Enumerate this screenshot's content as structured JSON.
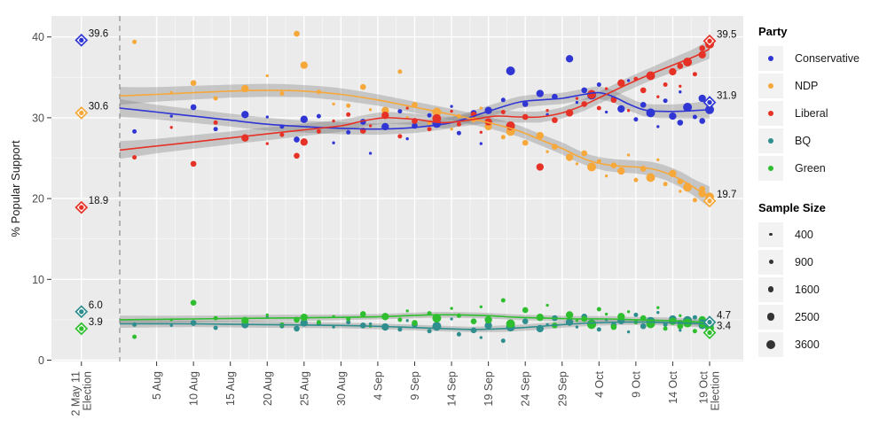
{
  "legend": {
    "party": {
      "title": "Party",
      "items": [
        {
          "id": "conservative",
          "label": "Conservative",
          "color": "#3036d4"
        },
        {
          "id": "ndp",
          "label": "NDP",
          "color": "#f6a83a"
        },
        {
          "id": "liberal",
          "label": "Liberal",
          "color": "#e63226"
        },
        {
          "id": "bq",
          "label": "BQ",
          "color": "#2f8e8e"
        },
        {
          "id": "green",
          "label": "Green",
          "color": "#2fbe2f"
        }
      ]
    },
    "sample_size": {
      "title": "Sample Size",
      "items": [
        {
          "label": "400",
          "n": 400
        },
        {
          "label": "900",
          "n": 900
        },
        {
          "label": "1600",
          "n": 1600
        },
        {
          "label": "2500",
          "n": 2500
        },
        {
          "label": "3600",
          "n": 3600
        }
      ]
    }
  },
  "chart_data": {
    "type": "scatter",
    "title": "",
    "xlabel": "",
    "ylabel": "% Popular Support",
    "ylim": [
      0,
      42
    ],
    "grid": true,
    "legend_position": "right",
    "style": {
      "panel_fill": "#ebebeb",
      "grid_major": "#ffffff",
      "grid_minor": "#f6f6f6",
      "band_fill": "#777777",
      "band_opacity": 0.32,
      "dashed_line_color": "#999999",
      "axis_text_color": "#4d4d4d",
      "label_text_color": "#111111"
    },
    "y_ticks": [
      0,
      10,
      20,
      30,
      40
    ],
    "y_minor_ticks": [
      5,
      15,
      25,
      35
    ],
    "x_ticks": [
      {
        "day": -5.2,
        "lines": [
          "2 May 11",
          "Election"
        ]
      },
      {
        "day": 5,
        "lines": [
          "5 Aug"
        ]
      },
      {
        "day": 10,
        "lines": [
          "10 Aug"
        ]
      },
      {
        "day": 15,
        "lines": [
          "15 Aug"
        ]
      },
      {
        "day": 20,
        "lines": [
          "20 Aug"
        ]
      },
      {
        "day": 25,
        "lines": [
          "25 Aug"
        ]
      },
      {
        "day": 30,
        "lines": [
          "30 Aug"
        ]
      },
      {
        "day": 35,
        "lines": [
          "4 Sep"
        ]
      },
      {
        "day": 40,
        "lines": [
          "9 Sep"
        ]
      },
      {
        "day": 45,
        "lines": [
          "14 Sep"
        ]
      },
      {
        "day": 50,
        "lines": [
          "19 Sep"
        ]
      },
      {
        "day": 55,
        "lines": [
          "24 Sep"
        ]
      },
      {
        "day": 60,
        "lines": [
          "29 Sep"
        ]
      },
      {
        "day": 65,
        "lines": [
          "4 Oct"
        ]
      },
      {
        "day": 70,
        "lines": [
          "9 Oct"
        ]
      },
      {
        "day": 75,
        "lines": [
          "14 Oct"
        ]
      },
      {
        "day": 80,
        "lines": [
          "19 Oct",
          "Election"
        ]
      }
    ],
    "campaign_start_day": 0,
    "elections": [
      {
        "name": "2 May 11 Election",
        "day": -5.2,
        "results": {
          "conservative": 39.6,
          "ndp": 30.6,
          "liberal": 18.9,
          "bq": 6.0,
          "green": 3.9
        }
      },
      {
        "name": "19 Oct Election",
        "day": 80,
        "results": {
          "liberal": 39.5,
          "conservative": 31.9,
          "ndp": 19.7,
          "bq": 4.7,
          "green": 3.4
        }
      }
    ],
    "trends": {
      "conservative": [
        [
          0,
          31.2,
          1.1
        ],
        [
          5,
          30.7,
          0.9
        ],
        [
          10,
          30.2,
          0.85
        ],
        [
          15,
          29.7,
          0.8
        ],
        [
          20,
          29.2,
          0.8
        ],
        [
          25,
          28.9,
          0.75
        ],
        [
          30,
          28.7,
          0.75
        ],
        [
          35,
          28.6,
          0.7
        ],
        [
          40,
          28.8,
          0.7
        ],
        [
          45,
          29.4,
          0.7
        ],
        [
          50,
          30.8,
          0.7
        ],
        [
          54,
          31.9,
          0.7
        ],
        [
          57,
          32.2,
          0.7
        ],
        [
          60,
          32.4,
          0.7
        ],
        [
          63,
          32.9,
          0.7
        ],
        [
          65,
          33.1,
          0.75
        ],
        [
          67,
          32.6,
          0.75
        ],
        [
          69,
          31.7,
          0.8
        ],
        [
          71,
          31.0,
          0.8
        ],
        [
          73,
          30.8,
          0.85
        ],
        [
          76,
          30.8,
          0.9
        ],
        [
          80,
          31.0,
          1.1
        ]
      ],
      "ndp": [
        [
          0,
          32.7,
          1.1
        ],
        [
          5,
          32.9,
          0.9
        ],
        [
          10,
          33.1,
          0.85
        ],
        [
          15,
          33.3,
          0.8
        ],
        [
          20,
          33.4,
          0.8
        ],
        [
          25,
          33.3,
          0.75
        ],
        [
          30,
          32.9,
          0.75
        ],
        [
          35,
          32.2,
          0.7
        ],
        [
          40,
          31.3,
          0.7
        ],
        [
          45,
          30.4,
          0.7
        ],
        [
          50,
          29.4,
          0.7
        ],
        [
          54,
          28.4,
          0.7
        ],
        [
          57,
          27.3,
          0.7
        ],
        [
          60,
          26.2,
          0.75
        ],
        [
          62,
          25.3,
          0.75
        ],
        [
          64,
          24.6,
          0.75
        ],
        [
          66,
          24.2,
          0.8
        ],
        [
          68,
          24.0,
          0.8
        ],
        [
          70,
          23.9,
          0.8
        ],
        [
          72,
          23.7,
          0.85
        ],
        [
          74,
          23.2,
          0.9
        ],
        [
          76,
          22.4,
          0.95
        ],
        [
          78,
          21.3,
          1.05
        ],
        [
          80,
          20.2,
          1.3
        ]
      ],
      "liberal": [
        [
          0,
          26.0,
          1.1
        ],
        [
          5,
          26.5,
          0.9
        ],
        [
          10,
          27.0,
          0.85
        ],
        [
          15,
          27.5,
          0.8
        ],
        [
          20,
          28.0,
          0.8
        ],
        [
          25,
          28.5,
          0.75
        ],
        [
          30,
          29.0,
          0.75
        ],
        [
          33,
          29.6,
          0.7
        ],
        [
          36,
          30.0,
          0.7
        ],
        [
          40,
          29.8,
          0.7
        ],
        [
          44,
          29.4,
          0.7
        ],
        [
          48,
          29.8,
          0.7
        ],
        [
          51,
          30.2,
          0.7
        ],
        [
          54,
          30.1,
          0.7
        ],
        [
          57,
          30.1,
          0.7
        ],
        [
          60,
          30.6,
          0.7
        ],
        [
          63,
          31.6,
          0.75
        ],
        [
          66,
          32.9,
          0.75
        ],
        [
          69,
          34.2,
          0.8
        ],
        [
          72,
          35.4,
          0.8
        ],
        [
          75,
          36.5,
          0.9
        ],
        [
          78,
          37.6,
          1.0
        ],
        [
          80,
          38.5,
          1.2
        ]
      ],
      "bq": [
        [
          0,
          4.5,
          0.5
        ],
        [
          10,
          4.5,
          0.4
        ],
        [
          20,
          4.4,
          0.4
        ],
        [
          30,
          4.3,
          0.35
        ],
        [
          38,
          4.1,
          0.35
        ],
        [
          44,
          3.9,
          0.35
        ],
        [
          48,
          3.8,
          0.35
        ],
        [
          52,
          3.9,
          0.4
        ],
        [
          56,
          4.1,
          0.4
        ],
        [
          60,
          4.4,
          0.4
        ],
        [
          64,
          4.6,
          0.35
        ],
        [
          68,
          4.7,
          0.35
        ],
        [
          72,
          4.7,
          0.35
        ],
        [
          76,
          4.6,
          0.4
        ],
        [
          80,
          4.5,
          0.5
        ]
      ],
      "green": [
        [
          0,
          5.0,
          0.5
        ],
        [
          10,
          5.1,
          0.4
        ],
        [
          20,
          5.2,
          0.4
        ],
        [
          30,
          5.3,
          0.35
        ],
        [
          36,
          5.4,
          0.35
        ],
        [
          42,
          5.6,
          0.35
        ],
        [
          46,
          5.6,
          0.35
        ],
        [
          50,
          5.5,
          0.35
        ],
        [
          54,
          5.3,
          0.35
        ],
        [
          58,
          5.2,
          0.35
        ],
        [
          62,
          5.1,
          0.35
        ],
        [
          66,
          5.1,
          0.35
        ],
        [
          70,
          5.0,
          0.35
        ],
        [
          74,
          4.9,
          0.4
        ],
        [
          77,
          4.8,
          0.4
        ],
        [
          80,
          4.6,
          0.5
        ]
      ]
    },
    "polls_columns": [
      "day",
      "sample_size",
      "conservative",
      "ndp",
      "liberal",
      "bq",
      "green"
    ],
    "polls": [
      [
        2,
        900,
        28.3,
        39.4,
        25.1,
        4.4,
        2.9
      ],
      [
        7,
        400,
        30.2,
        33.1,
        28.8,
        4.3,
        5.0
      ],
      [
        10,
        1600,
        31.3,
        34.3,
        24.3,
        4.6,
        7.1
      ],
      [
        13,
        900,
        28.6,
        32.4,
        29.4,
        4.0,
        5.2
      ],
      [
        17,
        2500,
        30.4,
        33.6,
        27.5,
        4.4,
        4.9
      ],
      [
        20,
        400,
        30.1,
        35.2,
        26.8,
        5.3,
        5.6
      ],
      [
        22,
        900,
        28.9,
        33.0,
        27.9,
        4.2,
        4.4
      ],
      [
        24,
        1600,
        27.3,
        40.4,
        25.3,
        3.9,
        5.0
      ],
      [
        25,
        2500,
        29.8,
        36.5,
        27.0,
        4.6,
        5.3
      ],
      [
        27,
        900,
        30.2,
        33.2,
        28.3,
        4.5,
        4.7
      ],
      [
        29,
        400,
        26.9,
        31.7,
        29.6,
        4.1,
        5.4
      ],
      [
        31,
        900,
        28.2,
        31.5,
        30.4,
        4.7,
        5.1
      ],
      [
        33,
        1600,
        29.5,
        33.8,
        28.4,
        4.3,
        5.7
      ],
      [
        34,
        400,
        25.6,
        31.0,
        29.0,
        4.5,
        4.2
      ],
      [
        36,
        2500,
        28.9,
        30.9,
        30.3,
        4.1,
        5.4
      ],
      [
        38,
        900,
        30.8,
        35.7,
        27.7,
        3.8,
        5.0
      ],
      [
        39,
        400,
        27.4,
        30.0,
        31.2,
        4.9,
        6.1
      ],
      [
        40,
        1600,
        29.0,
        31.6,
        29.6,
        4.4,
        4.6
      ],
      [
        42,
        900,
        30.3,
        29.4,
        28.6,
        3.6,
        5.8
      ],
      [
        43,
        3600,
        29.3,
        30.7,
        29.9,
        4.2,
        5.2
      ],
      [
        45,
        400,
        31.4,
        28.6,
        30.8,
        5.1,
        6.4
      ],
      [
        46,
        900,
        28.1,
        30.2,
        29.2,
        3.2,
        5.5
      ],
      [
        48,
        1600,
        30.6,
        29.8,
        30.4,
        3.7,
        4.8
      ],
      [
        49,
        400,
        26.8,
        31.2,
        28.2,
        2.8,
        6.6
      ],
      [
        50,
        2500,
        30.9,
        28.9,
        29.5,
        4.3,
        5.0
      ],
      [
        52,
        900,
        32.2,
        27.6,
        30.7,
        2.4,
        7.4
      ],
      [
        53,
        3600,
        35.8,
        28.3,
        29.0,
        4.1,
        4.5
      ],
      [
        55,
        1600,
        31.7,
        26.9,
        30.1,
        4.8,
        6.2
      ],
      [
        57,
        2500,
        33.0,
        27.8,
        23.9,
        3.9,
        5.3
      ],
      [
        58,
        400,
        30.4,
        25.8,
        30.9,
        4.4,
        6.8
      ],
      [
        59,
        1600,
        32.6,
        26.4,
        29.7,
        5.2,
        4.3
      ],
      [
        61,
        2500,
        37.3,
        25.1,
        30.6,
        4.7,
        5.6
      ],
      [
        62,
        400,
        31.9,
        24.3,
        32.4,
        4.1,
        4.9
      ],
      [
        63,
        1600,
        33.4,
        25.6,
        31.7,
        5.4,
        5.1
      ],
      [
        64,
        3600,
        32.8,
        23.9,
        32.9,
        4.5,
        4.4
      ],
      [
        65,
        900,
        34.1,
        24.6,
        31.2,
        3.8,
        6.3
      ],
      [
        66,
        400,
        30.7,
        22.8,
        33.6,
        5.0,
        5.7
      ],
      [
        67,
        1600,
        32.3,
        24.1,
        32.2,
        4.3,
        4.1
      ],
      [
        68,
        2500,
        31.1,
        23.4,
        34.3,
        4.9,
        5.4
      ],
      [
        69,
        400,
        34.6,
        25.4,
        30.9,
        3.5,
        6.0
      ],
      [
        70,
        900,
        29.8,
        22.3,
        34.8,
        5.6,
        4.7
      ],
      [
        71,
        1600,
        31.6,
        23.7,
        33.4,
        4.2,
        5.2
      ],
      [
        72,
        3600,
        30.6,
        22.6,
        35.2,
        4.8,
        4.5
      ],
      [
        73,
        400,
        28.9,
        24.8,
        32.6,
        5.9,
        6.5
      ],
      [
        74,
        900,
        32.1,
        21.8,
        34.1,
        4.4,
        3.9
      ],
      [
        75,
        2500,
        30.2,
        23.1,
        35.7,
        5.1,
        4.8
      ],
      [
        76,
        400,
        33.2,
        20.9,
        33.9,
        3.7,
        5.5
      ],
      [
        76,
        1600,
        29.4,
        22.1,
        36.4,
        4.6,
        4.2
      ],
      [
        77,
        3600,
        31.3,
        21.4,
        36.9,
        4.9,
        4.6
      ],
      [
        78,
        900,
        30.1,
        19.8,
        35.4,
        5.3,
        3.6
      ],
      [
        79,
        2500,
        32.4,
        20.6,
        37.8,
        4.3,
        5.0
      ],
      [
        79,
        1600,
        29.6,
        21.2,
        38.6,
        4.7,
        4.4
      ],
      [
        80,
        3600,
        31.0,
        20.2,
        39.1,
        4.5,
        4.0
      ]
    ]
  }
}
